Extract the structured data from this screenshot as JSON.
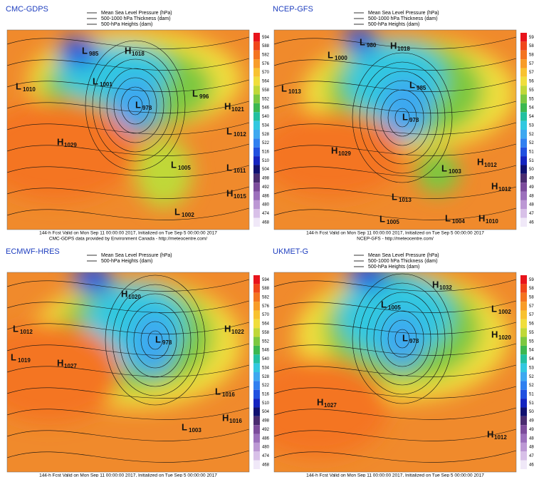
{
  "scale": {
    "labels": [
      "594",
      "588",
      "582",
      "576",
      "570",
      "564",
      "558",
      "552",
      "546",
      "540",
      "534",
      "528",
      "522",
      "516",
      "510",
      "504",
      "498",
      "492",
      "486",
      "480",
      "474",
      "468"
    ],
    "colors": [
      "#e8141c",
      "#f0461a",
      "#f47420",
      "#f89c28",
      "#f8c230",
      "#f0de3c",
      "#c0d838",
      "#7cc840",
      "#3cb850",
      "#22c0a0",
      "#32c8e0",
      "#3ea8f0",
      "#3080f0",
      "#2050e0",
      "#1424c0",
      "#101070",
      "#4a2c70",
      "#7c4c9c",
      "#9c70bc",
      "#bc98d4",
      "#d8c0e8",
      "#f0e8f8"
    ]
  },
  "panels": [
    {
      "title": "CMC-GDPS",
      "legend": [
        "Mean Sea Level Pressure (hPa)",
        "500-1000 hPa Thickness (dam)",
        "500-hPa Heights (dam)"
      ],
      "centers": [
        {
          "kind": "L",
          "value": "985"
        },
        {
          "kind": "H",
          "value": "1018"
        },
        {
          "kind": "L",
          "value": "1001"
        },
        {
          "kind": "L",
          "value": "1010"
        },
        {
          "kind": "L",
          "value": "978"
        },
        {
          "kind": "L",
          "value": "996"
        },
        {
          "kind": "H",
          "value": "1021"
        },
        {
          "kind": "L",
          "value": "1012"
        },
        {
          "kind": "H",
          "value": "1029"
        },
        {
          "kind": "L",
          "value": "1005"
        },
        {
          "kind": "L",
          "value": "1011"
        },
        {
          "kind": "H",
          "value": "1015"
        },
        {
          "kind": "L",
          "value": "1002"
        }
      ],
      "footer": [
        "144-h Fcst Valid on Mon Sep 11 00:00:00 2017, Initialized on Tue Sep  5 00:00:00 2017",
        "CMC-GDPS data provided by Environment Canada - http://meteocentre.com/"
      ]
    },
    {
      "title": "NCEP-GFS",
      "legend": [
        "Mean Sea Level Pressure (hPa)",
        "500-1000 hPa Thickness (dam)",
        "500-hPa Heights (dam)"
      ],
      "centers": [
        {
          "kind": "L",
          "value": "980"
        },
        {
          "kind": "H",
          "value": "1018"
        },
        {
          "kind": "L",
          "value": "1000"
        },
        {
          "kind": "L",
          "value": "1013"
        },
        {
          "kind": "L",
          "value": "985"
        },
        {
          "kind": "L",
          "value": "978"
        },
        {
          "kind": "H",
          "value": "1029"
        },
        {
          "kind": "L",
          "value": "1003"
        },
        {
          "kind": "H",
          "value": "1012"
        },
        {
          "kind": "H",
          "value": "1012"
        },
        {
          "kind": "L",
          "value": "1013"
        },
        {
          "kind": "L",
          "value": "1005"
        },
        {
          "kind": "L",
          "value": "1004"
        },
        {
          "kind": "H",
          "value": "1010"
        }
      ],
      "footer": [
        "144-h Fcst Valid on Mon Sep 11 00:00:00 2017, Initialized on Tue Sep  5 00:00:00 2017",
        "NCEP-GFS - http://meteocentre.com/"
      ]
    },
    {
      "title": "ECMWF-HRES",
      "legend": [
        "Mean Sea Level Pressure (hPa)",
        "500-hPa Heights (dam)"
      ],
      "centers": [
        {
          "kind": "H",
          "value": "1020"
        },
        {
          "kind": "L",
          "value": "1012"
        },
        {
          "kind": "L",
          "value": "978"
        },
        {
          "kind": "H",
          "value": "1022"
        },
        {
          "kind": "L",
          "value": "1019"
        },
        {
          "kind": "H",
          "value": "1027"
        },
        {
          "kind": "L",
          "value": "1016"
        },
        {
          "kind": "H",
          "value": "1016"
        },
        {
          "kind": "L",
          "value": "1003"
        }
      ],
      "footer": [
        "144-h Fcst Valid on Mon Sep 11 00:00:00 2017, Initialized on Tue Sep  5 00:00:00 2017"
      ]
    },
    {
      "title": "UKMET-G",
      "legend": [
        "Mean Sea Level Pressure (hPa)",
        "500-1000 hPa Thickness (dam)",
        "500-hPa Heights (dam)"
      ],
      "centers": [
        {
          "kind": "H",
          "value": "1032"
        },
        {
          "kind": "L",
          "value": "1002"
        },
        {
          "kind": "L",
          "value": "1005"
        },
        {
          "kind": "L",
          "value": "978"
        },
        {
          "kind": "H",
          "value": "1020"
        },
        {
          "kind": "H",
          "value": "1027"
        },
        {
          "kind": "H",
          "value": "1012"
        }
      ],
      "footer": [
        "144-h Fcst Valid on Mon Sep 11 00:00:00 2017, Initialized on Tue Sep  5 00:00:00 2017"
      ]
    }
  ]
}
